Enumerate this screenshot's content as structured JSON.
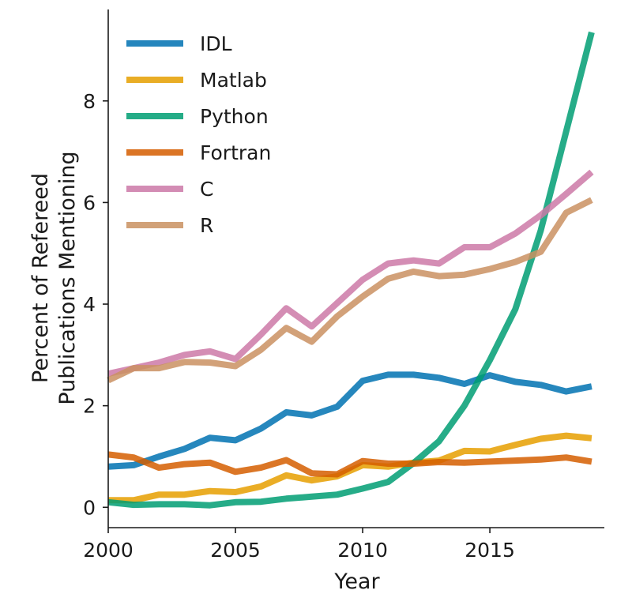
{
  "chart_data": {
    "type": "line",
    "xlabel": "Year",
    "ylabel_lines": [
      "Percent of Refereed",
      "Publications Mentioning"
    ],
    "xlim": [
      2000,
      2019.5
    ],
    "ylim": [
      -0.4,
      9.8
    ],
    "xticks": [
      2000,
      2005,
      2010,
      2015
    ],
    "yticks": [
      0,
      2,
      4,
      6,
      8
    ],
    "legend_position": "top-left",
    "x": [
      2000,
      2001,
      2002,
      2003,
      2004,
      2005,
      2006,
      2007,
      2008,
      2009,
      2010,
      2011,
      2012,
      2013,
      2014,
      2015,
      2016,
      2017,
      2018,
      2019
    ],
    "series": [
      {
        "name": "IDL",
        "color": "#0072b2",
        "values": [
          0.8,
          0.83,
          1.0,
          1.15,
          1.37,
          1.32,
          1.55,
          1.87,
          1.81,
          1.98,
          2.49,
          2.61,
          2.61,
          2.55,
          2.43,
          2.6,
          2.47,
          2.41,
          2.28,
          2.38
        ]
      },
      {
        "name": "Matlab",
        "color": "#e69f00",
        "values": [
          0.14,
          0.14,
          0.25,
          0.25,
          0.32,
          0.3,
          0.41,
          0.63,
          0.53,
          0.61,
          0.83,
          0.8,
          0.88,
          0.92,
          1.11,
          1.1,
          1.23,
          1.35,
          1.41,
          1.36
        ]
      },
      {
        "name": "Python",
        "color": "#009e73",
        "values": [
          0.1,
          0.05,
          0.06,
          0.06,
          0.04,
          0.1,
          0.11,
          0.17,
          0.21,
          0.25,
          0.37,
          0.5,
          0.87,
          1.3,
          2.0,
          2.9,
          3.9,
          5.45,
          7.4,
          9.35
        ]
      },
      {
        "name": "Fortran",
        "color": "#d55e00",
        "values": [
          1.04,
          0.98,
          0.78,
          0.85,
          0.88,
          0.7,
          0.78,
          0.93,
          0.67,
          0.65,
          0.91,
          0.86,
          0.86,
          0.89,
          0.88,
          0.9,
          0.92,
          0.94,
          0.98,
          0.9
        ]
      },
      {
        "name": "C",
        "color": "#cc79a7",
        "values": [
          2.63,
          2.74,
          2.85,
          3.0,
          3.07,
          2.92,
          3.4,
          3.92,
          3.56,
          4.02,
          4.48,
          4.8,
          4.86,
          4.8,
          5.12,
          5.12,
          5.39,
          5.75,
          6.17,
          6.6
        ]
      },
      {
        "name": "R",
        "color": "#ca9161",
        "values": [
          2.5,
          2.74,
          2.74,
          2.86,
          2.85,
          2.78,
          3.1,
          3.53,
          3.26,
          3.76,
          4.15,
          4.5,
          4.64,
          4.55,
          4.58,
          4.69,
          4.83,
          5.03,
          5.8,
          6.05
        ]
      }
    ]
  }
}
